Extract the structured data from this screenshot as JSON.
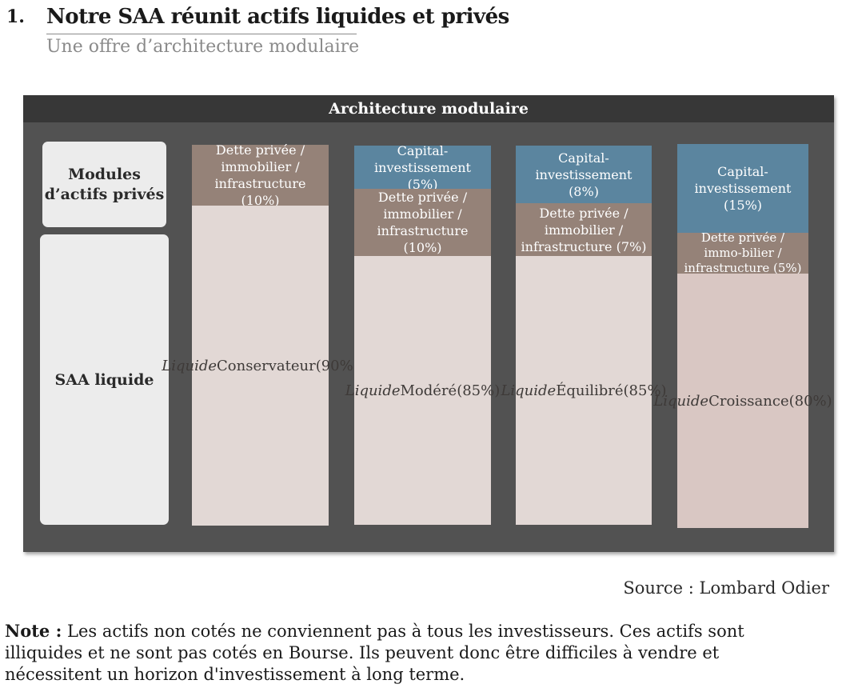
{
  "heading": {
    "number": "1.",
    "title": "Notre SAA réunit actifs liquides et privés",
    "subtitle": "Une offre d’architecture modulaire"
  },
  "panel": {
    "title": "Architecture modulaire",
    "row_labels": {
      "private": "Modules d’actifs privés",
      "liquid": "SAA liquide"
    },
    "columns": [
      {
        "id": "conservateur",
        "segments": [
          {
            "kind": "debt",
            "label": "Dette privée / immobilier / infrastructure (10%)"
          },
          {
            "kind": "liquid",
            "liquid_label": "Liquide",
            "name": "Conservateur",
            "pct": "(90%)"
          }
        ]
      },
      {
        "id": "modere",
        "segments": [
          {
            "kind": "pe",
            "label": "Capital-investissement (5%)"
          },
          {
            "kind": "debt",
            "label": "Dette privée / immobilier / infrastructure (10%)"
          },
          {
            "kind": "liquid",
            "liquid_label": "Liquide",
            "name": "Modéré",
            "pct": "(85%)"
          }
        ]
      },
      {
        "id": "equilibre",
        "segments": [
          {
            "kind": "pe",
            "label": "Capital-investissement (8%)"
          },
          {
            "kind": "debt",
            "label": "Dette privée / immobilier / infrastructure (7%)"
          },
          {
            "kind": "liquid",
            "liquid_label": "Liquide",
            "name": "Équilibré",
            "pct": "(85%)"
          }
        ]
      },
      {
        "id": "croissance",
        "segments": [
          {
            "kind": "pe",
            "label": "Capital-investissement (15%)"
          },
          {
            "kind": "debt",
            "label": "Dette privée / immo-bilier / infrastructure (5%)"
          },
          {
            "kind": "liquid",
            "liquid_label": "Liquide",
            "name": "Croissance",
            "pct": "(80%)"
          }
        ]
      }
    ],
    "colors": {
      "panel": "#525252",
      "header": "#373737",
      "pe": "#5b859f",
      "debt": "#958278",
      "liquid": "#e2d8d5",
      "liquid_alt": "#d9c7c3"
    }
  },
  "source": "Source : Lombard Odier",
  "note": {
    "label": "Note :",
    "text": "Les actifs non cotés ne conviennent pas à tous les investisseurs. Ces actifs sont illiquides et ne sont pas cotés en Bourse. Ils peuvent donc être difficiles à vendre et nécessitent un horizon d'investissement à long terme."
  }
}
